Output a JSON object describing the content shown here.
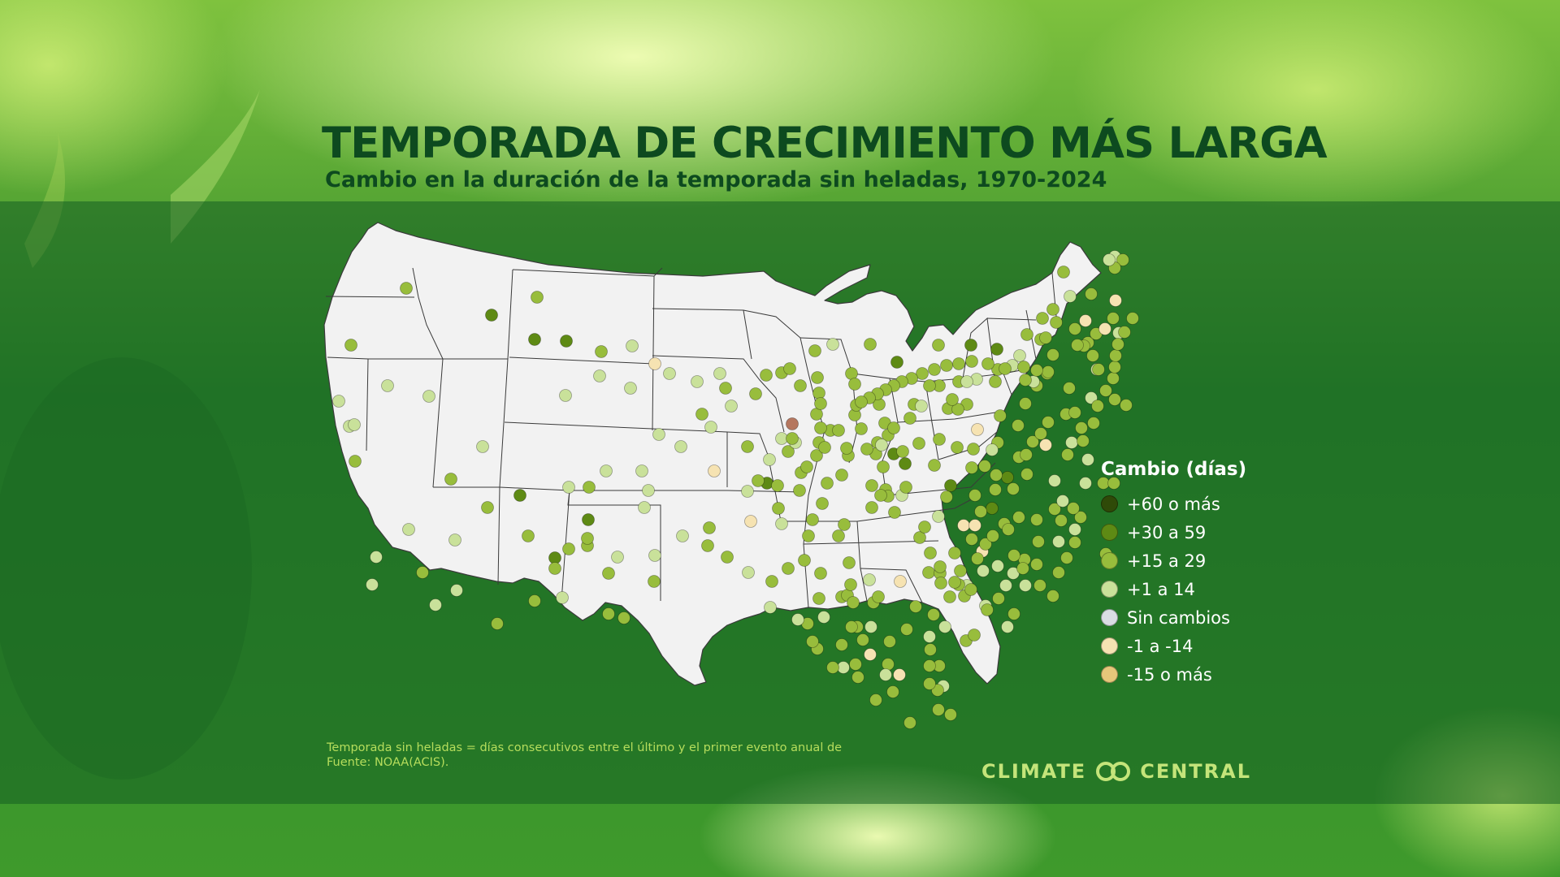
{
  "title": "TEMPORADA DE CRECIMIENTO MÁS LARGA",
  "subtitle": "Cambio en la duración de la temporada sin heladas, 1970-2024",
  "legend": {
    "title": "Cambio (días)",
    "items": [
      {
        "label": "+60 o más",
        "color": "#2f4a08"
      },
      {
        "label": "+30 a 59",
        "color": "#5e8a14"
      },
      {
        "label": "+15 a 29",
        "color": "#98bd3c"
      },
      {
        "label": "+1 a 14",
        "color": "#c9e19a"
      },
      {
        "label": "Sin cambios",
        "color": "#d9dde3"
      },
      {
        "label": "-1 a -14",
        "color": "#f6e3b2"
      },
      {
        "label": "-15 o más",
        "color": "#e6c77a"
      }
    ]
  },
  "footnote": {
    "line1": "Temporada sin heladas = días consecutivos entre el último y el primer evento anual de",
    "line2": "Fuente: NOAA(ACIS)."
  },
  "brand": {
    "left": "CLIMATE",
    "right": "CENTRAL"
  }
}
